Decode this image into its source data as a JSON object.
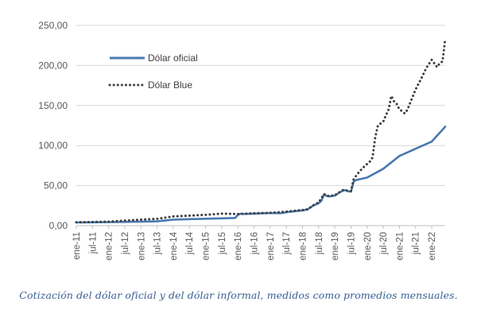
{
  "caption": "Cotización del dólar oficial y del dólar informal, medidos como promedios mensuales.",
  "chart_data": {
    "type": "line",
    "title": "",
    "xlabel": "",
    "ylabel": "",
    "ylim": [
      0,
      250
    ],
    "yticks": [
      "0,00",
      "50,00",
      "100,00",
      "150,00",
      "200,00",
      "250,00"
    ],
    "ytick_values": [
      0,
      50,
      100,
      150,
      200,
      250
    ],
    "categories": [
      "ene-11",
      "jul-11",
      "ene-12",
      "jul-12",
      "ene-13",
      "jul-13",
      "ene-14",
      "jul-14",
      "ene-15",
      "jul-15",
      "ene-16",
      "jul-16",
      "ene-17",
      "jul-17",
      "ene-18",
      "jul-18",
      "ene-19",
      "jul-19",
      "ene-20",
      "jul-20",
      "ene-21",
      "jul-21",
      "ene-22"
    ],
    "x_start": "ene-11",
    "x_end": "jun-22",
    "grid": true,
    "legend_position": "top-left",
    "series": [
      {
        "name": "Dólar oficial",
        "style": "solid",
        "color": "#4a78b0",
        "points": [
          [
            "ene-11",
            3.98
          ],
          [
            "jul-11",
            4.12
          ],
          [
            "ene-12",
            4.35
          ],
          [
            "jul-12",
            4.6
          ],
          [
            "ene-13",
            5.0
          ],
          [
            "jul-13",
            5.4
          ],
          [
            "ene-14",
            7.5
          ],
          [
            "jul-14",
            8.1
          ],
          [
            "ene-15",
            8.6
          ],
          [
            "jul-15",
            9.1
          ],
          [
            "dic-15",
            9.6
          ],
          [
            "ene-16",
            13.5
          ],
          [
            "feb-16",
            15.0
          ],
          [
            "mar-16",
            14.5
          ],
          [
            "jul-16",
            14.9
          ],
          [
            "ene-17",
            15.8
          ],
          [
            "may-17",
            15.5
          ],
          [
            "jul-17",
            16.8
          ],
          [
            "ene-18",
            19.0
          ],
          [
            "mar-18",
            20.4
          ],
          [
            "may-18",
            25.0
          ],
          [
            "jul-18",
            28.0
          ],
          [
            "ago-18",
            31.0
          ],
          [
            "sep-18",
            39.0
          ],
          [
            "oct-18",
            37.0
          ],
          [
            "nov-18",
            36.5
          ],
          [
            "ene-19",
            37.5
          ],
          [
            "mar-19",
            42.0
          ],
          [
            "abr-19",
            43.5
          ],
          [
            "may-19",
            44.5
          ],
          [
            "jun-19",
            43.0
          ],
          [
            "jul-19",
            42.5
          ],
          [
            "ago-19",
            55.0
          ],
          [
            "sep-19",
            57.0
          ],
          [
            "ene-20",
            60.0
          ],
          [
            "jul-20",
            71.0
          ],
          [
            "ene-21",
            87.0
          ],
          [
            "jul-21",
            96.0
          ],
          [
            "ene-22",
            105.0
          ],
          [
            "jun-22",
            123.5
          ]
        ]
      },
      {
        "name": "Dólar Blue",
        "style": "dotted",
        "color": "#404040",
        "points": [
          [
            "ene-11",
            4.2
          ],
          [
            "jul-11",
            4.6
          ],
          [
            "ene-12",
            5.0
          ],
          [
            "jul-12",
            6.3
          ],
          [
            "ene-13",
            7.5
          ],
          [
            "jul-13",
            8.5
          ],
          [
            "ene-14",
            11.5
          ],
          [
            "jul-14",
            12.5
          ],
          [
            "ene-15",
            13.5
          ],
          [
            "jul-15",
            15.0
          ],
          [
            "ene-16",
            14.5
          ],
          [
            "jul-16",
            15.5
          ],
          [
            "ene-17",
            16.0
          ],
          [
            "jul-17",
            17.5
          ],
          [
            "ene-18",
            19.5
          ],
          [
            "mar-18",
            20.5
          ],
          [
            "may-18",
            25.5
          ],
          [
            "jul-18",
            29.0
          ],
          [
            "sep-18",
            39.5
          ],
          [
            "oct-18",
            37.5
          ],
          [
            "nov-18",
            37.0
          ],
          [
            "ene-19",
            38.0
          ],
          [
            "abr-19",
            44.5
          ],
          [
            "jul-19",
            43.0
          ],
          [
            "ago-19",
            58.0
          ],
          [
            "oct-19",
            67.0
          ],
          [
            "dic-19",
            74.0
          ],
          [
            "ene-20",
            77.0
          ],
          [
            "feb-20",
            80.0
          ],
          [
            "mar-20",
            85.0
          ],
          [
            "abr-20",
            110.0
          ],
          [
            "may-20",
            125.0
          ],
          [
            "jul-20",
            130.0
          ],
          [
            "ago-20",
            138.0
          ],
          [
            "sep-20",
            145.0
          ],
          [
            "oct-20",
            162.0
          ],
          [
            "nov-20",
            155.0
          ],
          [
            "dic-20",
            152.0
          ],
          [
            "ene-21",
            145.0
          ],
          [
            "feb-21",
            143.0
          ],
          [
            "mar-21",
            140.0
          ],
          [
            "abr-21",
            145.0
          ],
          [
            "jul-21",
            170.0
          ],
          [
            "sep-21",
            183.0
          ],
          [
            "nov-21",
            197.0
          ],
          [
            "ene-22",
            207.0
          ],
          [
            "mar-22",
            198.0
          ],
          [
            "abr-22",
            203.0
          ],
          [
            "may-22",
            205.0
          ],
          [
            "jun-22",
            233.0
          ]
        ]
      }
    ]
  }
}
